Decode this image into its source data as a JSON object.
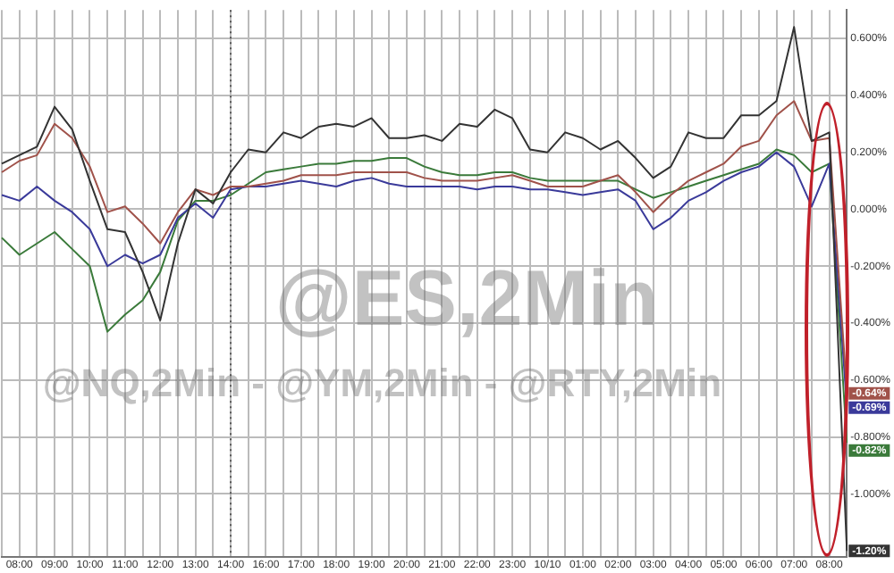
{
  "chart_data": {
    "type": "line",
    "title": "@ES,2Min",
    "subtitle": "@NQ,2Min - @YM,2Min - @RTY,2Min",
    "categories": [
      null,
      "08:00",
      null,
      "09:00",
      null,
      "10:00",
      null,
      "11:00",
      null,
      "12:00",
      null,
      "13:00",
      null,
      "14:00",
      null,
      "16:00",
      null,
      "17:00",
      null,
      "18:00",
      null,
      "19:00",
      null,
      "20:00",
      null,
      "21:00",
      null,
      "22:00",
      null,
      "23:00",
      null,
      "10/10",
      null,
      "01:00",
      null,
      "02:00",
      null,
      "03:00",
      null,
      "04:00",
      null,
      "05:00",
      null,
      "06:00",
      null,
      "07:00",
      null,
      "08:00",
      null
    ],
    "series": [
      {
        "color": "#333333",
        "values": [
          0.16,
          0.19,
          0.22,
          0.36,
          0.28,
          0.1,
          -0.07,
          -0.08,
          -0.22,
          -0.39,
          -0.12,
          0.07,
          0.02,
          0.13,
          0.21,
          0.2,
          0.27,
          0.25,
          0.29,
          0.3,
          0.29,
          0.32,
          0.25,
          0.25,
          0.26,
          0.24,
          0.3,
          0.29,
          0.35,
          0.32,
          0.21,
          0.2,
          0.27,
          0.25,
          0.21,
          0.24,
          0.18,
          0.11,
          0.15,
          0.27,
          0.25,
          0.25,
          0.33,
          0.33,
          0.38,
          0.64,
          0.24,
          0.27,
          -1.2
        ]
      },
      {
        "color": "#a0524a",
        "values": [
          0.13,
          0.17,
          0.19,
          0.3,
          0.25,
          0.15,
          -0.01,
          0.01,
          -0.05,
          -0.12,
          -0.01,
          0.07,
          0.05,
          0.08,
          0.08,
          0.09,
          0.1,
          0.12,
          0.12,
          0.12,
          0.13,
          0.13,
          0.13,
          0.13,
          0.11,
          0.1,
          0.1,
          0.1,
          0.11,
          0.12,
          0.1,
          0.08,
          0.08,
          0.08,
          0.1,
          0.12,
          0.06,
          -0.01,
          0.05,
          0.1,
          0.13,
          0.16,
          0.22,
          0.24,
          0.33,
          0.38,
          0.24,
          0.25,
          -0.64
        ]
      },
      {
        "color": "#3a3a9a",
        "values": [
          0.05,
          0.03,
          0.08,
          0.03,
          -0.01,
          -0.07,
          -0.2,
          -0.16,
          -0.19,
          -0.16,
          -0.03,
          0.02,
          -0.03,
          0.07,
          0.08,
          0.08,
          0.09,
          0.1,
          0.09,
          0.08,
          0.1,
          0.11,
          0.09,
          0.08,
          0.08,
          0.08,
          0.08,
          0.07,
          0.08,
          0.08,
          0.07,
          0.07,
          0.06,
          0.05,
          0.06,
          0.07,
          0.03,
          -0.07,
          -0.03,
          0.03,
          0.06,
          0.1,
          0.13,
          0.15,
          0.2,
          0.15,
          0.01,
          0.16,
          -0.69
        ]
      },
      {
        "color": "#3a7a3a",
        "values": [
          -0.1,
          -0.16,
          -0.12,
          -0.08,
          -0.14,
          -0.2,
          -0.43,
          -0.37,
          -0.32,
          -0.22,
          -0.04,
          0.03,
          0.03,
          0.05,
          0.09,
          0.13,
          0.14,
          0.15,
          0.16,
          0.16,
          0.17,
          0.17,
          0.18,
          0.18,
          0.15,
          0.13,
          0.12,
          0.12,
          0.13,
          0.13,
          0.11,
          0.1,
          0.1,
          0.1,
          0.1,
          0.1,
          0.07,
          0.04,
          0.06,
          0.08,
          0.1,
          0.12,
          0.14,
          0.16,
          0.21,
          0.19,
          0.13,
          0.16,
          -0.82
        ]
      }
    ],
    "ylim": [
      -1.22,
      0.7
    ],
    "yticks": [
      {
        "value": 0.6,
        "label": "0.600%"
      },
      {
        "value": 0.4,
        "label": "0.400%"
      },
      {
        "value": 0.2,
        "label": "0.200%"
      },
      {
        "value": 0,
        "label": "0.000%"
      },
      {
        "value": -0.2,
        "label": "-0.200%"
      },
      {
        "value": -0.4,
        "label": "-0.400%"
      },
      {
        "value": -0.6,
        "label": "-0.600%"
      },
      {
        "value": -0.8,
        "label": "-0.800%"
      },
      {
        "value": -1,
        "label": "-1.000%"
      }
    ],
    "ref_lines": [
      {
        "axis": "x",
        "value": "14:00",
        "line_style": "dotted",
        "color": "#555555"
      }
    ],
    "annotations": [
      "-1.20%",
      "-0.64%",
      "-0.69%",
      "-0.82%"
    ],
    "grid": true,
    "legend": false,
    "marker": "none",
    "line_style": "solid"
  }
}
